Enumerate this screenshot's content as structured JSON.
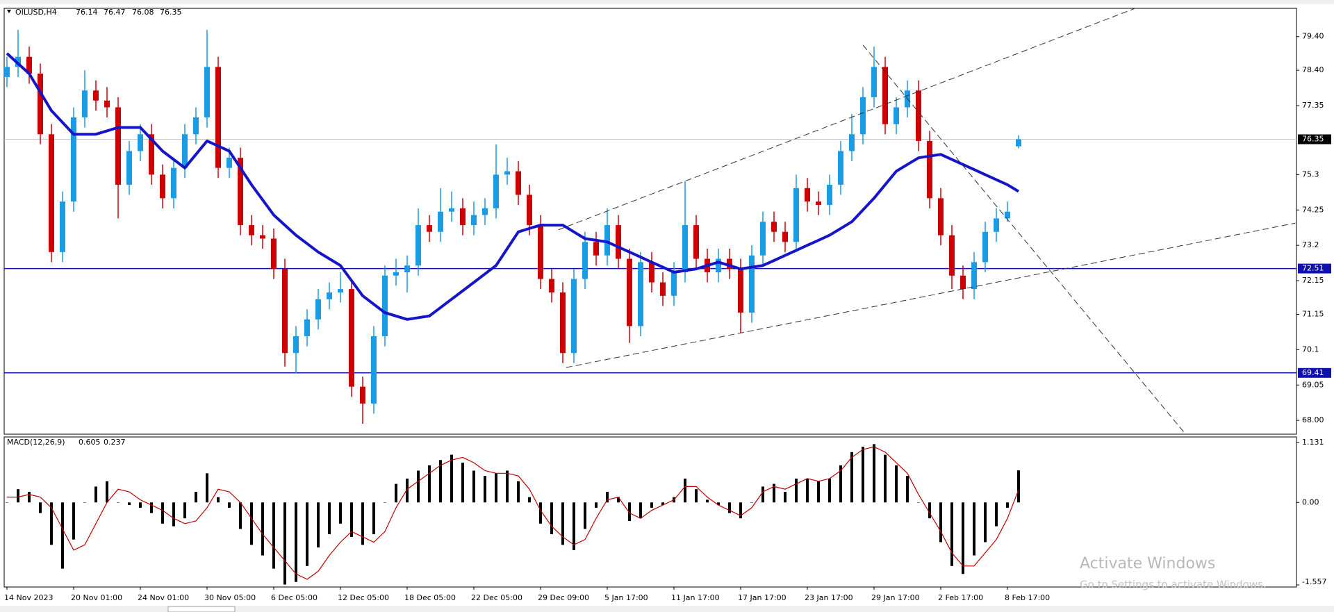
{
  "chart_data": {
    "type": "candlestick",
    "symbol": "OILUSD,H4",
    "categories": [
      "14 Nov 2023",
      null,
      null,
      null,
      null,
      null,
      "20 Nov 01:00",
      null,
      null,
      null,
      null,
      null,
      "24 Nov 01:00",
      null,
      null,
      null,
      null,
      null,
      "30 Nov 05:00",
      null,
      null,
      null,
      null,
      null,
      "6 Dec 05:00",
      null,
      null,
      null,
      null,
      null,
      "12 Dec 05:00",
      null,
      null,
      null,
      null,
      null,
      "18 Dec 05:00",
      null,
      null,
      null,
      null,
      null,
      "22 Dec 05:00",
      null,
      null,
      null,
      null,
      null,
      "29 Dec 09:00",
      null,
      null,
      null,
      null,
      null,
      "5 Jan 17:00",
      null,
      null,
      null,
      null,
      null,
      "11 Jan 17:00",
      null,
      null,
      null,
      null,
      null,
      "17 Jan 17:00",
      null,
      null,
      null,
      null,
      null,
      "23 Jan 17:00",
      null,
      null,
      null,
      null,
      null,
      "29 Jan 17:00",
      null,
      null,
      null,
      null,
      null,
      "2 Feb 17:00",
      null,
      null,
      null,
      null,
      null,
      "8 Feb 17:00",
      null
    ],
    "xlim": [
      -0.25,
      116.0
    ],
    "open": [
      78.2,
      78.5,
      78.8,
      78.3,
      76.5,
      73.0,
      74.5,
      77.0,
      77.8,
      77.5,
      77.3,
      75.0,
      76.0,
      76.5,
      75.3,
      74.6,
      75.5,
      76.5,
      77.0,
      78.5,
      75.5,
      75.8,
      73.8,
      73.5,
      73.4,
      72.5,
      70.0,
      70.5,
      71.0,
      71.6,
      71.8,
      71.9,
      69.0,
      68.5,
      70.5,
      72.3,
      72.4,
      72.6,
      73.8,
      73.6,
      74.2,
      74.3,
      73.8,
      74.1,
      74.3,
      75.3,
      75.4,
      74.7,
      73.8,
      72.2,
      71.8,
      70.0,
      72.2,
      73.3,
      72.9,
      73.8,
      72.8,
      70.8,
      72.7,
      72.1,
      71.7,
      72.4,
      73.8,
      72.8,
      72.4,
      72.8,
      72.5,
      71.2,
      72.9,
      73.9,
      73.6,
      73.3,
      74.9,
      74.5,
      74.4,
      75.0,
      76.0,
      76.5,
      77.6,
      78.5,
      76.8,
      77.3,
      77.8,
      76.3,
      74.6,
      73.5,
      72.3,
      71.9,
      72.7,
      73.6,
      74.0,
      76.14
    ],
    "high": [
      78.8,
      79.6,
      79.1,
      78.6,
      76.8,
      74.8,
      77.3,
      78.4,
      78.1,
      77.9,
      77.6,
      76.3,
      76.8,
      76.8,
      75.6,
      75.8,
      76.8,
      77.3,
      79.6,
      78.8,
      76.1,
      76.1,
      74.1,
      73.8,
      73.7,
      72.8,
      70.8,
      71.3,
      71.9,
      72.1,
      72.4,
      72.2,
      69.3,
      70.8,
      72.6,
      72.8,
      72.9,
      74.3,
      74.1,
      74.9,
      74.8,
      74.6,
      74.5,
      74.6,
      76.2,
      75.8,
      75.7,
      75.0,
      74.1,
      72.5,
      72.1,
      72.5,
      73.6,
      73.6,
      74.3,
      74.1,
      73.1,
      73.0,
      73.0,
      72.4,
      72.7,
      75.1,
      74.1,
      73.1,
      73.1,
      73.1,
      72.8,
      73.2,
      74.2,
      74.2,
      73.9,
      75.3,
      75.2,
      74.8,
      75.3,
      76.3,
      77.1,
      77.9,
      79.1,
      78.8,
      77.6,
      78.1,
      78.1,
      76.6,
      74.9,
      73.8,
      72.6,
      73.0,
      73.9,
      74.3,
      74.5,
      76.47
    ],
    "low": [
      77.9,
      78.2,
      78.0,
      76.2,
      72.7,
      72.7,
      74.2,
      76.7,
      77.2,
      77.0,
      74.0,
      74.7,
      75.7,
      75.0,
      74.3,
      74.3,
      75.2,
      76.2,
      76.7,
      75.2,
      75.2,
      73.5,
      73.2,
      73.1,
      72.2,
      69.6,
      69.4,
      70.2,
      70.7,
      71.3,
      71.5,
      68.7,
      67.9,
      68.2,
      70.2,
      72.0,
      71.8,
      72.3,
      73.3,
      73.3,
      73.9,
      73.5,
      73.5,
      73.8,
      74.0,
      75.0,
      74.4,
      73.5,
      71.9,
      71.5,
      69.7,
      69.7,
      71.9,
      72.6,
      72.6,
      72.5,
      70.3,
      70.5,
      71.8,
      71.4,
      71.4,
      72.1,
      72.5,
      72.1,
      72.1,
      72.2,
      70.6,
      70.9,
      72.6,
      73.3,
      73.0,
      73.0,
      74.2,
      74.1,
      74.1,
      74.7,
      75.7,
      76.2,
      77.3,
      76.5,
      76.5,
      77.0,
      76.0,
      74.3,
      73.2,
      71.9,
      71.6,
      71.6,
      72.4,
      73.3,
      73.9,
      76.08
    ],
    "close": [
      78.5,
      78.8,
      78.3,
      76.5,
      73.0,
      74.5,
      77.0,
      77.8,
      77.5,
      77.3,
      75.0,
      76.0,
      76.5,
      75.3,
      74.6,
      75.5,
      76.5,
      77.0,
      78.5,
      75.5,
      75.8,
      73.8,
      73.5,
      73.4,
      72.5,
      70.0,
      70.5,
      71.0,
      71.6,
      71.8,
      71.9,
      69.0,
      68.5,
      70.5,
      72.3,
      72.4,
      72.6,
      73.8,
      73.6,
      74.2,
      74.3,
      73.8,
      74.1,
      74.3,
      75.3,
      75.4,
      74.7,
      73.8,
      72.2,
      71.8,
      70.0,
      72.2,
      73.3,
      72.9,
      73.8,
      72.8,
      70.8,
      72.7,
      72.1,
      71.7,
      72.4,
      73.8,
      72.8,
      72.4,
      72.8,
      72.5,
      71.2,
      72.9,
      73.9,
      73.6,
      73.3,
      74.9,
      74.5,
      74.4,
      75.0,
      76.0,
      76.5,
      77.6,
      78.5,
      76.8,
      77.3,
      77.8,
      76.3,
      74.6,
      73.5,
      72.3,
      71.9,
      72.7,
      73.6,
      74.0,
      74.2,
      76.35
    ],
    "colors": {
      "up": "#1b9ae6",
      "down": "#d00000"
    },
    "ylim": [
      67.59,
      80.24
    ],
    "yticks": [
      {
        "value": 79.4,
        "label": "79.40"
      },
      {
        "value": 78.4,
        "label": "78.40"
      },
      77.35,
      75.3,
      74.25,
      73.2,
      72.15,
      71.15,
      70.1,
      69.05,
      {
        "value": 68.0,
        "label": "68.00"
      }
    ],
    "ma": {
      "color": "#1414c8",
      "values": [
        78.9,
        78.6,
        78.3,
        77.75,
        77.2,
        76.85,
        76.5,
        76.5,
        76.5,
        76.6,
        76.7,
        76.7,
        76.7,
        76.35,
        76.0,
        75.75,
        75.5,
        75.9,
        76.3,
        76.15,
        76.0,
        75.5,
        75.0,
        74.55,
        74.1,
        73.8,
        73.5,
        73.25,
        73.0,
        72.8,
        72.6,
        72.15,
        71.7,
        71.45,
        71.2,
        71.1,
        71.0,
        71.05,
        71.1,
        71.35,
        71.6,
        71.85,
        72.1,
        72.35,
        72.6,
        73.1,
        73.6,
        73.7,
        73.8,
        73.8,
        73.8,
        73.6,
        73.4,
        73.35,
        73.3,
        73.15,
        73.0,
        72.85,
        72.7,
        72.55,
        72.4,
        72.45,
        72.5,
        72.6,
        72.7,
        72.6,
        72.5,
        72.55,
        72.6,
        72.75,
        72.9,
        73.05,
        73.2,
        73.35,
        73.5,
        73.7,
        73.9,
        74.25,
        74.6,
        75.0,
        75.4,
        75.6,
        75.8,
        75.85,
        75.9,
        75.75,
        75.6,
        75.45,
        75.3,
        75.15,
        75.0,
        74.8
      ]
    },
    "hlines": [
      {
        "value": 72.51,
        "color": "#1010b0"
      },
      {
        "value": 69.41,
        "color": "#1010b0"
      }
    ],
    "price_line_color": "#c8c8c8",
    "trendline_color": "#333333",
    "trendlines": [
      {
        "x": [
          49.6,
          101.8
        ],
        "y": [
          73.66,
          80.28
        ]
      },
      {
        "x": [
          50.3,
          115.9
        ],
        "y": [
          69.57,
          73.86
        ]
      },
      {
        "x": [
          77.0,
          106.0
        ],
        "y": [
          79.15,
          67.6
        ]
      }
    ],
    "macd": {
      "title": "MACD(12,26,9)",
      "hist_color": "#000000",
      "signal_color": "#c00000",
      "histogram": [
        0.0,
        0.25,
        0.2,
        -0.2,
        -0.8,
        -1.25,
        -0.7,
        0.0,
        0.3,
        0.4,
        0.0,
        -0.05,
        -0.1,
        -0.2,
        -0.4,
        -0.45,
        -0.3,
        0.2,
        0.55,
        0.1,
        -0.1,
        -0.5,
        -0.8,
        -1.0,
        -1.25,
        -1.55,
        -1.5,
        -1.2,
        -0.85,
        -0.6,
        -0.4,
        -0.65,
        -0.8,
        -0.6,
        0.0,
        0.35,
        0.45,
        0.6,
        0.7,
        0.8,
        0.9,
        0.75,
        0.6,
        0.5,
        0.55,
        0.6,
        0.4,
        0.1,
        -0.4,
        -0.6,
        -0.8,
        -0.9,
        -0.5,
        -0.1,
        0.2,
        0.1,
        -0.35,
        -0.3,
        -0.1,
        -0.05,
        0.1,
        0.45,
        0.25,
        0.05,
        -0.05,
        -0.2,
        -0.3,
        0.0,
        0.3,
        0.35,
        0.2,
        0.45,
        0.45,
        0.4,
        0.45,
        0.7,
        0.95,
        1.05,
        1.1,
        0.9,
        0.7,
        0.5,
        0.0,
        -0.3,
        -0.75,
        -1.2,
        -1.35,
        -1.0,
        -0.75,
        -0.45,
        -0.1,
        0.605
      ],
      "signal": [
        0.1,
        0.1,
        0.15,
        0.1,
        -0.1,
        -0.5,
        -0.9,
        -0.8,
        -0.4,
        0.0,
        0.25,
        0.2,
        0.05,
        -0.05,
        -0.15,
        -0.3,
        -0.4,
        -0.35,
        -0.1,
        0.25,
        0.2,
        0.0,
        -0.3,
        -0.6,
        -0.85,
        -1.1,
        -1.35,
        -1.45,
        -1.3,
        -1.0,
        -0.75,
        -0.55,
        -0.65,
        -0.75,
        -0.55,
        -0.1,
        0.25,
        0.4,
        0.55,
        0.7,
        0.8,
        0.85,
        0.75,
        0.6,
        0.55,
        0.55,
        0.5,
        0.25,
        -0.15,
        -0.45,
        -0.65,
        -0.8,
        -0.7,
        -0.3,
        0.05,
        0.1,
        -0.2,
        -0.3,
        -0.15,
        -0.05,
        0.05,
        0.3,
        0.3,
        0.1,
        -0.05,
        -0.15,
        -0.25,
        -0.1,
        0.2,
        0.3,
        0.25,
        0.35,
        0.45,
        0.4,
        0.45,
        0.6,
        0.85,
        1.0,
        1.05,
        0.95,
        0.75,
        0.55,
        0.15,
        -0.2,
        -0.55,
        -0.95,
        -1.2,
        -1.2,
        -0.95,
        -0.7,
        -0.3,
        0.237
      ],
      "ylim": [
        -1.596,
        1.236
      ],
      "yticks": [
        1.131,
        {
          "value": 0,
          "label": "0.00"
        },
        -1.557
      ]
    }
  },
  "watermark": {
    "title": "Activate Windows",
    "subtitle": "Go to Settings to activate Windows."
  }
}
